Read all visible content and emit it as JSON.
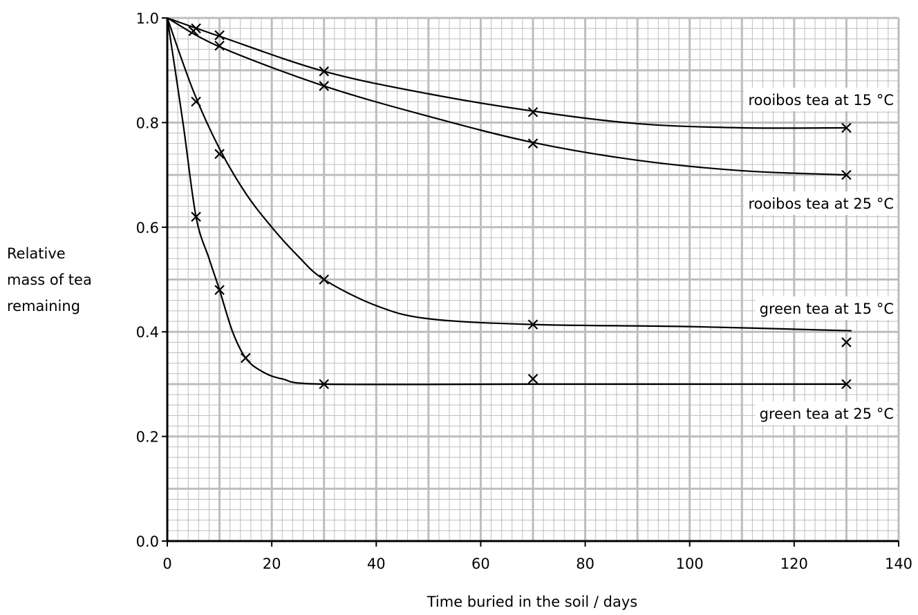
{
  "chart_data": {
    "type": "line",
    "title": "",
    "xlabel": "Time buried in the soil / days",
    "ylabel_lines": [
      "Relative",
      "mass of tea",
      "remaining"
    ],
    "xlim": [
      0,
      140
    ],
    "ylim": [
      0.0,
      1.0
    ],
    "xticks": [
      "0",
      "20",
      "40",
      "60",
      "80",
      "100",
      "120",
      "140"
    ],
    "yticks": [
      "0.0",
      "0.2",
      "0.4",
      "0.6",
      "0.8",
      "1.0"
    ],
    "grid": true,
    "series": [
      {
        "name": "rooibos tea at 15 °C",
        "points": [
          [
            0,
            1.0
          ],
          [
            5.5,
            0.98
          ],
          [
            10,
            0.967
          ],
          [
            30,
            0.898
          ],
          [
            70,
            0.82
          ],
          [
            130,
            0.79
          ]
        ],
        "curve": [
          [
            0,
            1.0
          ],
          [
            10,
            0.965
          ],
          [
            30,
            0.898
          ],
          [
            50,
            0.855
          ],
          [
            70,
            0.822
          ],
          [
            90,
            0.798
          ],
          [
            110,
            0.79
          ],
          [
            130,
            0.79
          ]
        ]
      },
      {
        "name": "rooibos tea at 25 °C",
        "points": [
          [
            0,
            1.0
          ],
          [
            5,
            0.975
          ],
          [
            10,
            0.947
          ],
          [
            30,
            0.87
          ],
          [
            70,
            0.76
          ],
          [
            130,
            0.7
          ]
        ],
        "curve": [
          [
            0,
            1.0
          ],
          [
            10,
            0.945
          ],
          [
            30,
            0.87
          ],
          [
            50,
            0.812
          ],
          [
            70,
            0.762
          ],
          [
            90,
            0.728
          ],
          [
            110,
            0.708
          ],
          [
            130,
            0.7
          ]
        ]
      },
      {
        "name": "green tea at 15 °C",
        "points": [
          [
            0,
            1.0
          ],
          [
            5.5,
            0.84
          ],
          [
            10,
            0.74
          ],
          [
            30,
            0.5
          ],
          [
            70,
            0.414
          ],
          [
            130,
            0.38
          ]
        ],
        "curve": [
          [
            0,
            1.0
          ],
          [
            5,
            0.86
          ],
          [
            10,
            0.75
          ],
          [
            15,
            0.665
          ],
          [
            20,
            0.6
          ],
          [
            25,
            0.545
          ],
          [
            30,
            0.5
          ],
          [
            40,
            0.45
          ],
          [
            50,
            0.425
          ],
          [
            70,
            0.414
          ],
          [
            100,
            0.41
          ],
          [
            131,
            0.402
          ]
        ]
      },
      {
        "name": "green tea at 25 °C",
        "points": [
          [
            0,
            1.0
          ],
          [
            5.5,
            0.62
          ],
          [
            10,
            0.48
          ],
          [
            15,
            0.35
          ],
          [
            30,
            0.3
          ],
          [
            70,
            0.31
          ],
          [
            130,
            0.3
          ]
        ],
        "curve": [
          [
            0,
            1.0
          ],
          [
            3,
            0.8
          ],
          [
            5.5,
            0.62
          ],
          [
            8,
            0.54
          ],
          [
            10,
            0.48
          ],
          [
            12.5,
            0.4
          ],
          [
            15,
            0.35
          ],
          [
            18,
            0.325
          ],
          [
            22,
            0.31
          ],
          [
            30,
            0.3
          ],
          [
            70,
            0.3
          ],
          [
            130,
            0.3
          ]
        ]
      }
    ]
  }
}
